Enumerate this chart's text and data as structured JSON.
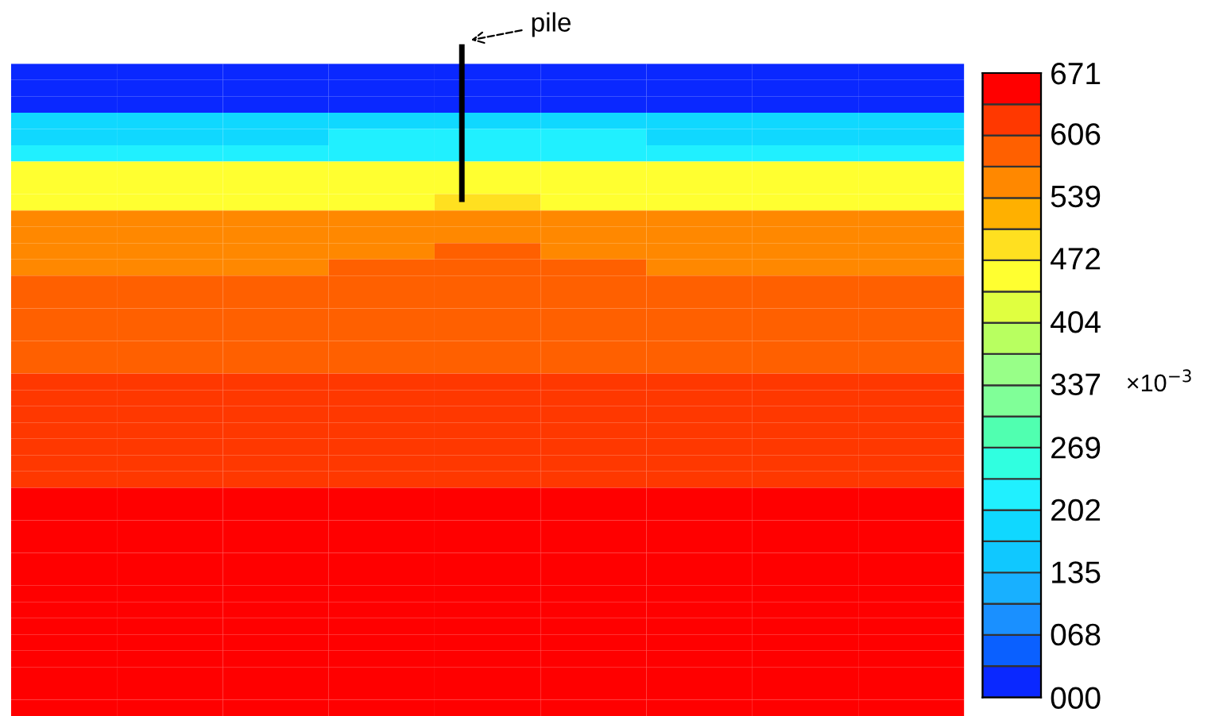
{
  "chart_data": {
    "type": "heatmap",
    "clabel": "×10$^{−3}$",
    "annotations": [
      "pile"
    ],
    "categories": [
      null,
      null,
      null,
      null,
      null,
      null,
      null,
      null,
      null
    ],
    "y_categories": [
      null,
      null,
      null,
      null,
      null,
      null,
      null,
      null,
      null,
      null,
      null,
      null,
      null,
      null,
      null,
      null,
      null,
      null,
      null,
      null,
      null,
      null,
      null,
      null,
      null,
      null,
      null,
      null,
      null,
      null,
      null,
      null,
      null,
      null,
      null,
      null,
      null,
      null,
      null,
      null
    ],
    "clim": [
      0,
      671
    ],
    "cticks": [
      {
        "value": 0,
        "label": "000"
      },
      {
        "value": 68,
        "label": "068"
      },
      135,
      202,
      269,
      337,
      404,
      472,
      539,
      606,
      671
    ],
    "colors": [
      "#0a28ff",
      "#0a60ff",
      "#1a90ff",
      "#18b0ff",
      "#10c8ff",
      "#10d8ff",
      "#20f0ff",
      "#30ffe0",
      "#50ffb0",
      "#80ff98",
      "#98ff88",
      "#b8ff60",
      "#e0ff40",
      "#ffff30",
      "#ffe020",
      "#ffb000",
      "#ff8800",
      "#ff6000",
      "#ff3800",
      "#ff0000"
    ],
    "tick_labels": false,
    "cells": [
      [
        17,
        17,
        17,
        17,
        17,
        17,
        17,
        17,
        17
      ],
      [
        17,
        17,
        17,
        17,
        17,
        17,
        17,
        17,
        17
      ],
      [
        17,
        17,
        17,
        17,
        17,
        17,
        17,
        17,
        17
      ],
      [
        185,
        185,
        185,
        185,
        185,
        185,
        185,
        185,
        185
      ],
      [
        185,
        185,
        185,
        218,
        218,
        218,
        185,
        185,
        185
      ],
      [
        218,
        218,
        218,
        218,
        218,
        218,
        218,
        218,
        218
      ],
      [
        453,
        453,
        453,
        453,
        453,
        453,
        453,
        453,
        453
      ],
      [
        453,
        453,
        453,
        453,
        453,
        453,
        453,
        453,
        453
      ],
      [
        453,
        453,
        453,
        453,
        486,
        453,
        453,
        453,
        453
      ],
      [
        554,
        554,
        554,
        554,
        554,
        554,
        554,
        554,
        554
      ],
      [
        554,
        554,
        554,
        554,
        554,
        554,
        554,
        554,
        554
      ],
      [
        554,
        554,
        554,
        554,
        587,
        554,
        554,
        554,
        554
      ],
      [
        554,
        554,
        554,
        587,
        587,
        587,
        554,
        554,
        554
      ],
      [
        587,
        587,
        587,
        587,
        587,
        587,
        587,
        587,
        587
      ],
      [
        587,
        587,
        587,
        587,
        587,
        587,
        587,
        587,
        587
      ],
      [
        587,
        587,
        587,
        587,
        587,
        587,
        587,
        587,
        587
      ],
      [
        587,
        587,
        587,
        587,
        587,
        587,
        587,
        587,
        587
      ],
      [
        587,
        587,
        587,
        587,
        587,
        587,
        587,
        587,
        587
      ],
      [
        587,
        587,
        587,
        587,
        587,
        587,
        587,
        587,
        587
      ],
      [
        620,
        620,
        620,
        620,
        620,
        620,
        620,
        620,
        620
      ],
      [
        620,
        620,
        620,
        620,
        620,
        620,
        620,
        620,
        620
      ],
      [
        620,
        620,
        620,
        620,
        620,
        620,
        620,
        620,
        620
      ],
      [
        620,
        620,
        620,
        620,
        620,
        620,
        620,
        620,
        620
      ],
      [
        620,
        620,
        620,
        620,
        620,
        620,
        620,
        620,
        620
      ],
      [
        620,
        620,
        620,
        620,
        620,
        620,
        620,
        620,
        620
      ],
      [
        620,
        620,
        620,
        620,
        620,
        620,
        620,
        620,
        620
      ],
      [
        654,
        654,
        654,
        654,
        654,
        654,
        654,
        654,
        654
      ],
      [
        654,
        654,
        654,
        654,
        654,
        654,
        654,
        654,
        654
      ],
      [
        654,
        654,
        654,
        654,
        654,
        654,
        654,
        654,
        654
      ],
      [
        654,
        654,
        654,
        654,
        654,
        654,
        654,
        654,
        654
      ],
      [
        654,
        654,
        654,
        654,
        654,
        654,
        654,
        654,
        654
      ],
      [
        654,
        654,
        654,
        654,
        654,
        654,
        654,
        654,
        654
      ],
      [
        654,
        654,
        654,
        654,
        654,
        654,
        654,
        654,
        654
      ],
      [
        654,
        654,
        654,
        654,
        654,
        654,
        654,
        654,
        654
      ],
      [
        654,
        654,
        654,
        654,
        654,
        654,
        654,
        654,
        654
      ],
      [
        654,
        654,
        654,
        654,
        654,
        654,
        654,
        654,
        654
      ],
      [
        654,
        654,
        654,
        654,
        654,
        654,
        654,
        654,
        654
      ],
      [
        654,
        654,
        654,
        654,
        654,
        654,
        654,
        654,
        654
      ],
      [
        654,
        654,
        654,
        654,
        654,
        654,
        654,
        654,
        654
      ],
      [
        654,
        654,
        654,
        654,
        654,
        654,
        654,
        654,
        654
      ]
    ]
  }
}
